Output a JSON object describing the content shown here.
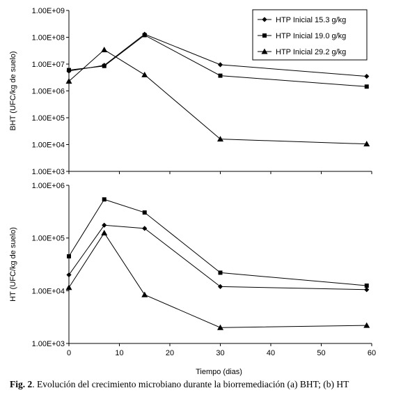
{
  "caption": {
    "prefix": "Fig. 2",
    "text": ". Evolución del crecimiento microbiano durante la biorremediación (a) BHT; (b) HT"
  },
  "chart_data": [
    {
      "id": "top",
      "type": "line",
      "ylabel": "BHT (UFC/kg de suelo)",
      "xlabel": "",
      "y_scale": "log",
      "ylim": [
        1000,
        1000000000
      ],
      "xlim": [
        0,
        60
      ],
      "y_ticks": [
        {
          "value": 1000,
          "label": "1.00E+03"
        },
        {
          "value": 10000,
          "label": "1.00E+04"
        },
        {
          "value": 100000,
          "label": "1.00E+05"
        },
        {
          "value": 1000000,
          "label": "1.00E+06"
        },
        {
          "value": 10000000,
          "label": "1.00E+07"
        },
        {
          "value": 100000000,
          "label": "1.00E+08"
        },
        {
          "value": 1000000000,
          "label": "1.00E+09"
        }
      ],
      "x_tick_labels": false,
      "grid": false,
      "legend_position": "top-right",
      "series": [
        {
          "name": "HTP Inicial 15.3 g/kg",
          "marker": "diamond",
          "x": [
            0,
            7,
            15,
            30,
            59
          ],
          "y": [
            5500000,
            9000000,
            130000000,
            9500000,
            3500000
          ]
        },
        {
          "name": "HTP Inicial 19.0 g/kg",
          "marker": "square",
          "x": [
            0,
            7,
            15,
            30,
            59
          ],
          "y": [
            6000000,
            8500000,
            120000000,
            3700000,
            1450000
          ]
        },
        {
          "name": "HTP Inicial 29.2 g/kg",
          "marker": "triangle",
          "x": [
            0,
            7,
            15,
            30,
            59
          ],
          "y": [
            2300000,
            34000000,
            4000000,
            16000,
            10500
          ]
        }
      ]
    },
    {
      "id": "bottom",
      "type": "line",
      "ylabel": "HT (UFC/kg de suelo)",
      "xlabel": "Tiempo (dias)",
      "y_scale": "log",
      "ylim": [
        1000,
        1000000
      ],
      "xlim": [
        0,
        60
      ],
      "y_ticks": [
        {
          "value": 1000,
          "label": "1.00E+03"
        },
        {
          "value": 10000,
          "label": "1.00E+04"
        },
        {
          "value": 100000,
          "label": "1.00E+05"
        },
        {
          "value": 1000000,
          "label": "1.00E+06"
        }
      ],
      "x_ticks": [
        0,
        10,
        20,
        30,
        40,
        50,
        60
      ],
      "x_tick_labels": true,
      "grid": false,
      "series": [
        {
          "name": "HTP Inicial 15.3 g/kg",
          "marker": "diamond",
          "x": [
            0,
            7,
            15,
            30,
            59
          ],
          "y": [
            20000,
            175000,
            152000,
            12000,
            10500
          ]
        },
        {
          "name": "HTP Inicial 19.0 g/kg",
          "marker": "square",
          "x": [
            0,
            7,
            15,
            30,
            59
          ],
          "y": [
            45000,
            540000,
            305000,
            22000,
            12500
          ]
        },
        {
          "name": "HTP Inicial 29.2 g/kg",
          "marker": "triangle",
          "x": [
            0,
            7,
            15,
            30,
            59
          ],
          "y": [
            11500,
            125000,
            8400,
            2000,
            2200
          ]
        }
      ]
    }
  ]
}
